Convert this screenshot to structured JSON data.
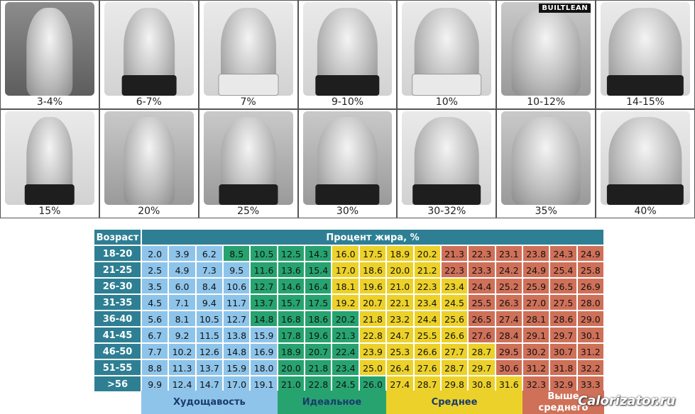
{
  "photos": [
    {
      "label": "3-4%",
      "tone": "dark",
      "shorts": "none",
      "logo": ""
    },
    {
      "label": "6-7%",
      "tone": "",
      "shorts": "dark",
      "logo": ""
    },
    {
      "label": "7%",
      "tone": "",
      "shorts": "light",
      "logo": ""
    },
    {
      "label": "9-10%",
      "tone": "",
      "shorts": "dark",
      "logo": ""
    },
    {
      "label": "10%",
      "tone": "",
      "shorts": "light",
      "logo": ""
    },
    {
      "label": "10-12%",
      "tone": "mid",
      "shorts": "none",
      "logo": "BUILTLEAN"
    },
    {
      "label": "14-15%",
      "tone": "",
      "shorts": "dark",
      "logo": ""
    },
    {
      "label": "15%",
      "tone": "",
      "shorts": "dark",
      "logo": ""
    },
    {
      "label": "20%",
      "tone": "mid",
      "shorts": "none",
      "logo": ""
    },
    {
      "label": "25%",
      "tone": "mid",
      "shorts": "dark",
      "logo": ""
    },
    {
      "label": "30%",
      "tone": "mid",
      "shorts": "dark",
      "logo": ""
    },
    {
      "label": "30-32%",
      "tone": "",
      "shorts": "dark",
      "logo": ""
    },
    {
      "label": "35%",
      "tone": "mid",
      "shorts": "none",
      "logo": ""
    },
    {
      "label": "40%",
      "tone": "",
      "shorts": "dark",
      "logo": ""
    }
  ],
  "table": {
    "age_header": "Возраст",
    "percent_header": "Процент жира, %",
    "colors": {
      "thin": "#8ec4ea",
      "ideal": "#27a370",
      "average": "#ecd12a",
      "above": "#cf7059",
      "header": "#2e7f93"
    },
    "rows": [
      {
        "age": "18-20",
        "values": [
          "2.0",
          "3.9",
          "6.2",
          "8.5",
          "10.5",
          "12.5",
          "14.3",
          "16.0",
          "17.5",
          "18.9",
          "20.2",
          "21.3",
          "22.3",
          "23.1",
          "23.8",
          "24.3",
          "24.9"
        ],
        "cats": [
          "thin",
          "thin",
          "thin",
          "ideal",
          "ideal",
          "ideal",
          "ideal",
          "average",
          "average",
          "average",
          "average",
          "above",
          "above",
          "above",
          "above",
          "above",
          "above"
        ]
      },
      {
        "age": "21-25",
        "values": [
          "2.5",
          "4.9",
          "7.3",
          "9.5",
          "11.6",
          "13.6",
          "15.4",
          "17.0",
          "18.6",
          "20.0",
          "21.2",
          "22.3",
          "23.3",
          "24.2",
          "24.9",
          "25.4",
          "25.8"
        ],
        "cats": [
          "thin",
          "thin",
          "thin",
          "thin",
          "ideal",
          "ideal",
          "ideal",
          "average",
          "average",
          "average",
          "average",
          "above",
          "above",
          "above",
          "above",
          "above",
          "above"
        ]
      },
      {
        "age": "26-30",
        "values": [
          "3.5",
          "6.0",
          "8.4",
          "10.6",
          "12.7",
          "14.6",
          "16.4",
          "18.1",
          "19.6",
          "21.0",
          "22.3",
          "23.4",
          "24.4",
          "25.2",
          "25.9",
          "26.5",
          "26.9"
        ],
        "cats": [
          "thin",
          "thin",
          "thin",
          "thin",
          "ideal",
          "ideal",
          "ideal",
          "average",
          "average",
          "average",
          "average",
          "average",
          "above",
          "above",
          "above",
          "above",
          "above"
        ]
      },
      {
        "age": "31-35",
        "values": [
          "4.5",
          "7.1",
          "9.4",
          "11.7",
          "13.7",
          "15.7",
          "17.5",
          "19.2",
          "20.7",
          "22.1",
          "23.4",
          "24.5",
          "25.5",
          "26.3",
          "27.0",
          "27.5",
          "28.0"
        ],
        "cats": [
          "thin",
          "thin",
          "thin",
          "thin",
          "ideal",
          "ideal",
          "ideal",
          "average",
          "average",
          "average",
          "average",
          "average",
          "above",
          "above",
          "above",
          "above",
          "above"
        ]
      },
      {
        "age": "36-40",
        "values": [
          "5.6",
          "8.1",
          "10.5",
          "12.7",
          "14.8",
          "16.8",
          "18.6",
          "20.2",
          "21.8",
          "23.2",
          "24.4",
          "25.6",
          "26.5",
          "27.4",
          "28.1",
          "28.6",
          "29.0"
        ],
        "cats": [
          "thin",
          "thin",
          "thin",
          "thin",
          "ideal",
          "ideal",
          "ideal",
          "ideal",
          "average",
          "average",
          "average",
          "average",
          "above",
          "above",
          "above",
          "above",
          "above"
        ]
      },
      {
        "age": "41-45",
        "values": [
          "6.7",
          "9.2",
          "11.5",
          "13.8",
          "15.9",
          "17.8",
          "19.6",
          "21.3",
          "22.8",
          "24.7",
          "25.5",
          "26.6",
          "27.6",
          "28.4",
          "29.1",
          "29.7",
          "30.1"
        ],
        "cats": [
          "thin",
          "thin",
          "thin",
          "thin",
          "thin",
          "ideal",
          "ideal",
          "ideal",
          "average",
          "average",
          "average",
          "average",
          "above",
          "above",
          "above",
          "above",
          "above"
        ]
      },
      {
        "age": "46-50",
        "values": [
          "7.7",
          "10.2",
          "12.6",
          "14.8",
          "16.9",
          "18.9",
          "20.7",
          "22.4",
          "23.9",
          "25.3",
          "26.6",
          "27.7",
          "28.7",
          "29.5",
          "30.2",
          "30.7",
          "31.2"
        ],
        "cats": [
          "thin",
          "thin",
          "thin",
          "thin",
          "thin",
          "ideal",
          "ideal",
          "ideal",
          "average",
          "average",
          "average",
          "average",
          "average",
          "above",
          "above",
          "above",
          "above"
        ]
      },
      {
        "age": "51-55",
        "values": [
          "8.8",
          "11.3",
          "13.7",
          "15.9",
          "18.0",
          "20.0",
          "21.8",
          "23.4",
          "25.0",
          "26.4",
          "27.6",
          "28.7",
          "29.7",
          "30.6",
          "31.2",
          "31.8",
          "32.2"
        ],
        "cats": [
          "thin",
          "thin",
          "thin",
          "thin",
          "thin",
          "ideal",
          "ideal",
          "ideal",
          "average",
          "average",
          "average",
          "average",
          "average",
          "above",
          "above",
          "above",
          "above"
        ]
      },
      {
        "age": ">56",
        "values": [
          "9.9",
          "12.4",
          "14.7",
          "17.0",
          "19.1",
          "21.0",
          "22.8",
          "24.5",
          "26.0",
          "27.4",
          "28.7",
          "29.8",
          "30.8",
          "31.6",
          "32.3",
          "32.9",
          "33.3"
        ],
        "cats": [
          "thin",
          "thin",
          "thin",
          "thin",
          "thin",
          "ideal",
          "ideal",
          "ideal",
          "ideal",
          "average",
          "average",
          "average",
          "average",
          "average",
          "above",
          "above",
          "above"
        ]
      }
    ],
    "legend": [
      {
        "label": "Худощавость",
        "cat": "thin",
        "span": 5
      },
      {
        "label": "Идеальное",
        "cat": "ideal",
        "span": 4
      },
      {
        "label": "Среднее",
        "cat": "average",
        "span": 5
      },
      {
        "label": "Выше среднего",
        "cat": "above",
        "span": 3
      }
    ]
  },
  "watermark": "Calorizator.ru"
}
